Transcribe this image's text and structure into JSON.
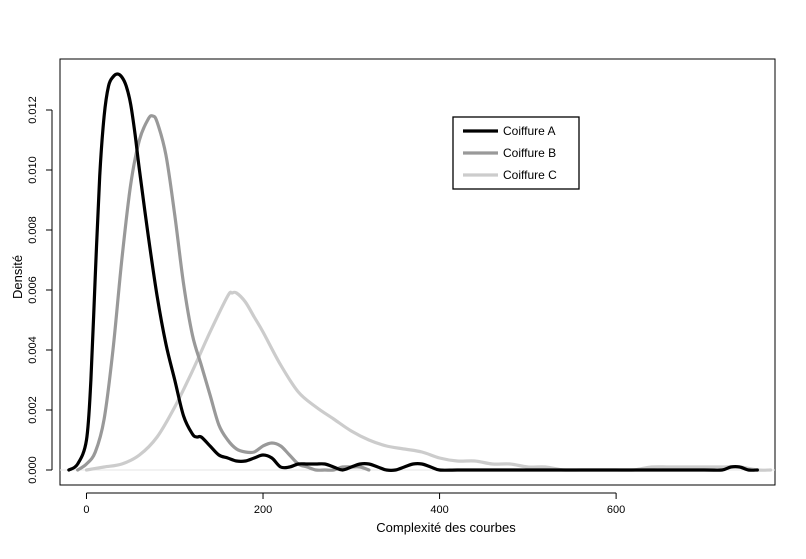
{
  "chart_data": {
    "type": "line",
    "title": "",
    "xlabel": "Complexité des courbes",
    "ylabel": "Densité",
    "xlim": [
      -30,
      780
    ],
    "ylim": [
      -0.0005,
      0.0137
    ],
    "xticks": [
      0,
      200,
      400,
      600
    ],
    "yticks": [
      0.0,
      0.002,
      0.004,
      0.006,
      0.008,
      0.01,
      0.012
    ],
    "ytick_labels": [
      "0.000",
      "0.002",
      "0.004",
      "0.006",
      "0.008",
      "0.010",
      "0.012"
    ],
    "xtick_labels": [
      "0",
      "200",
      "400",
      "600"
    ],
    "grid": false,
    "legend_position": "top-right (inset)",
    "series": [
      {
        "name": "Coiffure A",
        "color": "#000000",
        "x": [
          -20,
          -10,
          0,
          5,
          10,
          15,
          20,
          25,
          30,
          35,
          40,
          45,
          50,
          55,
          60,
          70,
          80,
          90,
          100,
          110,
          120,
          125,
          130,
          140,
          150,
          160,
          170,
          180,
          190,
          200,
          210,
          220,
          230,
          240,
          250,
          260,
          270,
          280,
          290,
          300,
          310,
          320,
          330,
          340,
          350,
          360,
          370,
          380,
          390,
          400,
          420,
          450,
          500,
          550,
          600,
          650,
          700,
          720,
          730,
          740,
          750,
          760
        ],
        "y": [
          0.0,
          0.0002,
          0.001,
          0.003,
          0.0065,
          0.0098,
          0.0118,
          0.0128,
          0.0131,
          0.0132,
          0.0131,
          0.0128,
          0.0122,
          0.0112,
          0.01,
          0.0078,
          0.0058,
          0.0042,
          0.003,
          0.0018,
          0.0012,
          0.0011,
          0.0011,
          0.0008,
          0.0005,
          0.0004,
          0.0003,
          0.0003,
          0.0004,
          0.0005,
          0.0004,
          0.0001,
          0.0001,
          0.0002,
          0.0002,
          0.0002,
          0.0002,
          0.0001,
          0.0,
          0.0001,
          0.0002,
          0.0002,
          0.0001,
          0.0,
          0.0,
          0.0001,
          0.0002,
          0.0002,
          0.0001,
          0.0,
          0.0,
          0.0,
          0.0,
          0.0,
          0.0,
          0.0,
          0.0,
          0.0,
          0.0001,
          0.0001,
          0.0,
          0.0
        ]
      },
      {
        "name": "Coiffure B",
        "color": "#999999",
        "x": [
          -10,
          0,
          10,
          20,
          30,
          40,
          50,
          60,
          70,
          75,
          80,
          90,
          100,
          110,
          120,
          130,
          140,
          150,
          160,
          170,
          180,
          190,
          200,
          210,
          220,
          230,
          240,
          250,
          260,
          270,
          280,
          290,
          300,
          310,
          320
        ],
        "y": [
          0.0,
          0.0002,
          0.0006,
          0.0017,
          0.004,
          0.007,
          0.0095,
          0.011,
          0.0117,
          0.0118,
          0.0116,
          0.0105,
          0.0085,
          0.0062,
          0.0045,
          0.0035,
          0.0025,
          0.0015,
          0.001,
          0.0007,
          0.0006,
          0.0006,
          0.0008,
          0.0009,
          0.0008,
          0.0005,
          0.0002,
          0.0001,
          0.0,
          0.0,
          0.0,
          0.0001,
          0.0001,
          0.0001,
          0.0
        ]
      },
      {
        "name": "Coiffure C",
        "color": "#cccccc",
        "x": [
          0,
          20,
          40,
          60,
          80,
          100,
          120,
          140,
          160,
          165,
          170,
          180,
          190,
          200,
          220,
          240,
          260,
          280,
          300,
          320,
          340,
          360,
          380,
          400,
          420,
          440,
          460,
          480,
          500,
          520,
          540,
          560,
          580,
          600,
          620,
          640,
          660,
          680,
          700,
          720,
          740,
          760,
          775
        ],
        "y": [
          0.0,
          0.0001,
          0.0002,
          0.0005,
          0.0011,
          0.0021,
          0.0033,
          0.0046,
          0.0058,
          0.0059,
          0.0059,
          0.0056,
          0.0051,
          0.0046,
          0.0035,
          0.0026,
          0.0021,
          0.0017,
          0.0013,
          0.001,
          0.0008,
          0.0007,
          0.0006,
          0.0004,
          0.0003,
          0.0003,
          0.0002,
          0.0002,
          0.0001,
          0.0001,
          0.0,
          0.0,
          0.0,
          0.0,
          0.0,
          0.0001,
          0.0001,
          0.0001,
          0.0001,
          0.0001,
          0.0001,
          0.0,
          0.0
        ]
      }
    ]
  }
}
